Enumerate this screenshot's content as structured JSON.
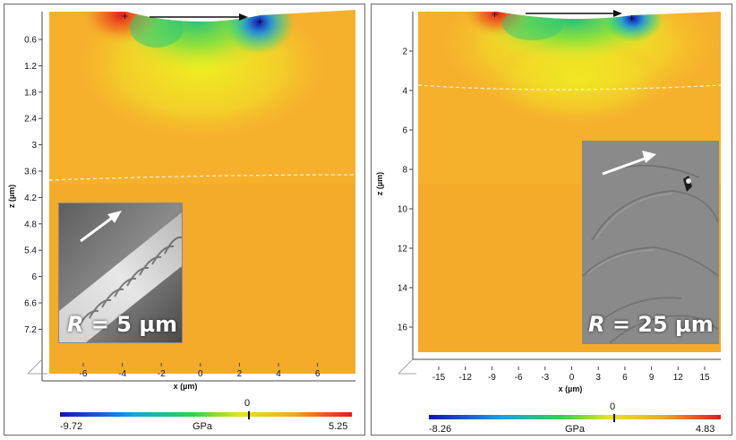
{
  "left_panel": {
    "z_ticks": [
      "0.6",
      "1.2",
      "1.8",
      "2.4",
      "3",
      "3.6",
      "4.2",
      "4.8",
      "5.4",
      "6",
      "6.6",
      "7.2"
    ],
    "x_ticks": [
      "-6",
      "-4",
      "-2",
      "0",
      "2",
      "4",
      "6"
    ],
    "z_label": "z (µm)",
    "x_label": "x (µm)",
    "inset_radius_symbol": "R",
    "inset_radius_value": " = 5 µm",
    "colorbar": {
      "min": "-9.72",
      "max": "5.25",
      "zero": "0",
      "unit": "GPa"
    }
  },
  "right_panel": {
    "z_ticks": [
      "2",
      "4",
      "6",
      "8",
      "10",
      "12",
      "14",
      "16"
    ],
    "x_ticks": [
      "-15",
      "-12",
      "-9",
      "-6",
      "-3",
      "0",
      "3",
      "6",
      "9",
      "12",
      "15"
    ],
    "z_label": "z (µm)",
    "x_label": "x (µm)",
    "inset_radius_symbol": "R",
    "inset_radius_value": " = 25 µm",
    "colorbar": {
      "min": "-8.26",
      "max": "4.83",
      "zero": "0",
      "unit": "GPa"
    }
  },
  "colors": {
    "map_base": "#f6b02c",
    "compressive": "#1414b4",
    "tensile": "#e01a1a",
    "boundary_dash": "#ffffff"
  }
}
